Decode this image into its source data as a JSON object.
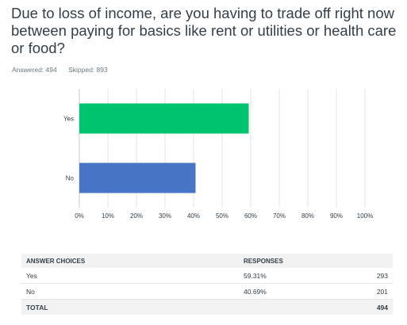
{
  "question": {
    "title": "Due to loss of income, are you having to trade off right now between paying for basics like rent or utilities or health care or food?",
    "answered_label": "Answered: 494",
    "skipped_label": "Skipped: 893"
  },
  "chart_data": {
    "type": "bar",
    "orientation": "horizontal",
    "categories": [
      "Yes",
      "No"
    ],
    "values": [
      59.31,
      40.69
    ],
    "colors": [
      "#00c36f",
      "#4774c5"
    ],
    "xlim": [
      0,
      100
    ],
    "x_ticks": [
      "0%",
      "10%",
      "20%",
      "30%",
      "40%",
      "50%",
      "60%",
      "70%",
      "80%",
      "90%",
      "100%"
    ],
    "grid": true,
    "title": "",
    "xlabel": "",
    "ylabel": ""
  },
  "table": {
    "headers": {
      "choice": "ANSWER CHOICES",
      "responses": "RESPONSES"
    },
    "rows": [
      {
        "choice": "Yes",
        "percent": "59.31%",
        "count": "293"
      },
      {
        "choice": "No",
        "percent": "40.69%",
        "count": "201"
      }
    ],
    "total": {
      "label": "TOTAL",
      "count": "494"
    }
  }
}
